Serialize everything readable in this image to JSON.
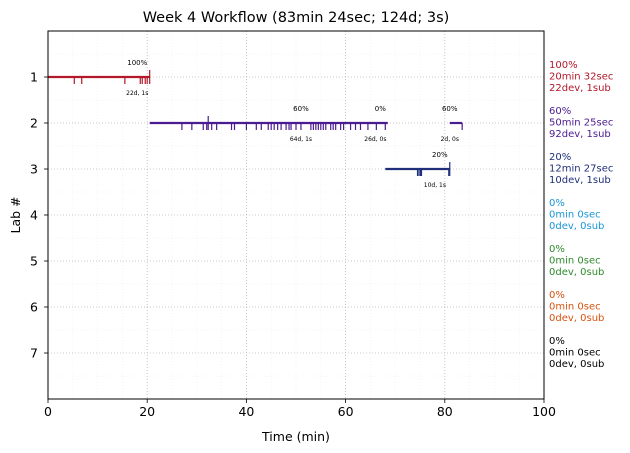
{
  "chart_data": {
    "type": "timeline",
    "title": "Week 4 Workflow (83min 24sec; 124d; 3s)",
    "xlabel": "Time (min)",
    "ylabel": "Lab #",
    "xlim": [
      0,
      100
    ],
    "ylim": [
      8,
      0
    ],
    "xticks": [
      0,
      20,
      40,
      60,
      80,
      100
    ],
    "yticks": [
      1,
      2,
      3,
      4,
      5,
      6,
      7
    ],
    "grid": true,
    "series": [
      {
        "lab": 1,
        "color": "#b2182b",
        "segments": [
          {
            "start": 0,
            "end": 20.5,
            "pct_label": "100%",
            "count_label": "22d, 1s",
            "pct_label_x": 18,
            "count_label_x": 18
          }
        ],
        "dev_ticks": [
          5.3,
          6.8,
          15.5,
          18.6,
          19.0,
          19.6,
          20.0
        ],
        "sub_ticks": [
          20.5
        ],
        "summary": [
          "100%",
          "20min 32sec",
          "22dev, 1sub"
        ]
      },
      {
        "lab": 2,
        "color": "#4b1b91",
        "segments": [
          {
            "start": 20.5,
            "end": 68.5,
            "pct_label": "60%",
            "count_label": "64d, 1s",
            "pct_label_x": 51,
            "count_label_x": 51
          },
          {
            "start": 68.5,
            "end": 68.5,
            "pct_label": "0%",
            "count_label": "26d, 0s",
            "pct_label_x": 67,
            "count_label_x": 66
          },
          {
            "start": 81,
            "end": 83.5,
            "pct_label": "60%",
            "count_label": "2d, 0s",
            "pct_label_x": 81,
            "count_label_x": 81
          }
        ],
        "dev_ticks": [
          27,
          29,
          31.3,
          32,
          33,
          34,
          37,
          37.6,
          40,
          42,
          43,
          44.4,
          45,
          45.6,
          46.3,
          47,
          48,
          48.6,
          49,
          50,
          51,
          53,
          53.5,
          54,
          54.5,
          55,
          55.5,
          56,
          57,
          57.5,
          58,
          59,
          59.6,
          61,
          62,
          63,
          64.5,
          66.2,
          68,
          83.5
        ],
        "sub_ticks": [
          32.3
        ],
        "summary": [
          "60%",
          "50min 25sec",
          "92dev, 1sub"
        ]
      },
      {
        "lab": 3,
        "color": "#1f2f7a",
        "segments": [
          {
            "start": 68,
            "end": 81,
            "pct_label": "20%",
            "count_label": "10d, 1s",
            "pct_label_x": 79,
            "count_label_x": 78
          }
        ],
        "dev_ticks": [
          74.5,
          74.8,
          75.1,
          75.3,
          80.8
        ],
        "sub_ticks": [
          81
        ],
        "summary": [
          "20%",
          "12min 27sec",
          "10dev, 1sub"
        ]
      },
      {
        "lab": 4,
        "color": "#1a96d6",
        "segments": [],
        "dev_ticks": [],
        "sub_ticks": [],
        "summary": [
          "0%",
          "0min 0sec",
          "0dev, 0sub"
        ]
      },
      {
        "lab": 5,
        "color": "#2e8b2e",
        "segments": [],
        "dev_ticks": [],
        "sub_ticks": [],
        "summary": [
          "0%",
          "0min 0sec",
          "0dev, 0sub"
        ]
      },
      {
        "lab": 6,
        "color": "#d9530f",
        "segments": [],
        "dev_ticks": [],
        "sub_ticks": [],
        "summary": [
          "0%",
          "0min 0sec",
          "0dev, 0sub"
        ]
      },
      {
        "lab": 7,
        "color": "#000000",
        "segments": [],
        "dev_ticks": [],
        "sub_ticks": [],
        "summary": [
          "0%",
          "0min 0sec",
          "0dev, 0sub"
        ]
      }
    ]
  }
}
